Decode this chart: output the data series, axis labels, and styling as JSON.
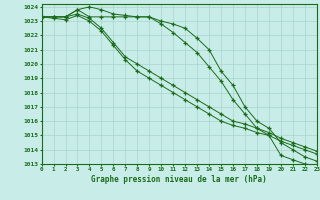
{
  "x": [
    0,
    1,
    2,
    3,
    4,
    5,
    6,
    7,
    8,
    9,
    10,
    11,
    12,
    13,
    14,
    15,
    16,
    17,
    18,
    19,
    20,
    21,
    22,
    23
  ],
  "line1": [
    1023.3,
    1023.3,
    1023.3,
    1023.8,
    1023.3,
    1023.3,
    1023.3,
    1023.3,
    1023.3,
    1023.3,
    1022.8,
    1022.2,
    1021.5,
    1020.8,
    1019.8,
    1018.8,
    1017.5,
    1016.5,
    1015.5,
    1015.0,
    1013.6,
    1013.3,
    1013.0,
    1012.9
  ],
  "line2": [
    1023.3,
    1023.3,
    1023.3,
    1023.8,
    1024.0,
    1023.8,
    1023.5,
    1023.4,
    1023.3,
    1023.3,
    1023.0,
    1022.8,
    1022.5,
    1021.8,
    1021.0,
    1019.5,
    1018.5,
    1017.0,
    1016.0,
    1015.5,
    1014.5,
    1014.0,
    1013.5,
    1013.2
  ],
  "line3": [
    1023.3,
    1023.3,
    1023.3,
    1023.5,
    1023.2,
    1022.5,
    1021.5,
    1020.5,
    1020.0,
    1019.5,
    1019.0,
    1018.5,
    1018.0,
    1017.5,
    1017.0,
    1016.5,
    1016.0,
    1015.8,
    1015.5,
    1015.2,
    1014.8,
    1014.5,
    1014.2,
    1013.9
  ],
  "line4": [
    1023.3,
    1023.2,
    1023.1,
    1023.4,
    1023.0,
    1022.3,
    1021.3,
    1020.3,
    1019.5,
    1019.0,
    1018.5,
    1018.0,
    1017.5,
    1017.0,
    1016.5,
    1016.0,
    1015.7,
    1015.5,
    1015.2,
    1015.0,
    1014.6,
    1014.3,
    1014.0,
    1013.7
  ],
  "line_color": "#1a6b1a",
  "bg_color": "#c8ede8",
  "grid_color": "#a8d4cc",
  "title": "Graphe pression niveau de la mer (hPa)",
  "ylim_min": 1013,
  "ylim_max": 1024,
  "xlim_min": 0,
  "xlim_max": 23
}
